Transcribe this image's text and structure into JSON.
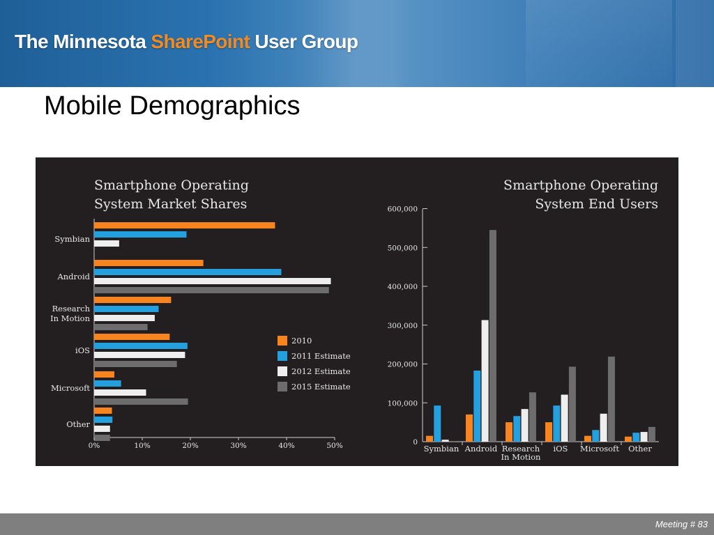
{
  "header": {
    "title_part1": "The Minnesota ",
    "title_accent": "SharePoint",
    "title_part2": " User Group"
  },
  "slide": {
    "title": "Mobile Demographics"
  },
  "footer": {
    "text": "Meeting # 83"
  },
  "colors": {
    "2010": "#f7841e",
    "2011 Estimate": "#24a0de",
    "2012 Estimate": "#eeeeee",
    "2015 Estimate": "#6d6d6d",
    "panel": "#231f20"
  },
  "chart_data": [
    {
      "type": "bar",
      "orientation": "horizontal",
      "title": [
        "Smartphone Operating",
        "System Market Shares"
      ],
      "categories": [
        [
          "Symbian"
        ],
        [
          "Android"
        ],
        [
          "Research",
          "In Motion"
        ],
        [
          "iOS"
        ],
        [
          "Microsoft"
        ],
        [
          "Other"
        ]
      ],
      "series": [
        {
          "name": "2010",
          "values": [
            37.6,
            22.7,
            16.0,
            15.7,
            4.2,
            3.7
          ]
        },
        {
          "name": "2011 Estimate",
          "values": [
            19.2,
            38.9,
            13.4,
            19.4,
            5.6,
            3.8
          ]
        },
        {
          "name": "2012 Estimate",
          "values": [
            5.2,
            49.2,
            12.6,
            18.9,
            10.8,
            3.3
          ]
        },
        {
          "name": "2015 Estimate",
          "values": [
            0.1,
            48.8,
            11.1,
            17.2,
            19.5,
            3.3
          ]
        }
      ],
      "xlim": [
        0,
        50
      ],
      "xticks": [
        "0%",
        "10%",
        "20%",
        "30%",
        "40%",
        "50%"
      ],
      "legend_position": "right"
    },
    {
      "type": "bar",
      "orientation": "vertical",
      "title": [
        "Smartphone Operating",
        "System End Users"
      ],
      "categories": [
        [
          "Symbian"
        ],
        [
          "Android"
        ],
        [
          "Research",
          "In Motion"
        ],
        [
          "iOS"
        ],
        [
          "Microsoft"
        ],
        [
          "Other"
        ]
      ],
      "series": [
        {
          "name": "2010",
          "values": [
            15000,
            70000,
            50000,
            50000,
            15000,
            13000
          ]
        },
        {
          "name": "2011 Estimate",
          "values": [
            93000,
            183000,
            66000,
            93000,
            30000,
            23000
          ]
        },
        {
          "name": "2012 Estimate",
          "values": [
            5000,
            313000,
            84000,
            121000,
            72000,
            25000
          ]
        },
        {
          "name": "2015 Estimate",
          "values": [
            1000,
            545000,
            127000,
            193000,
            219000,
            38000
          ]
        }
      ],
      "ylim": [
        0,
        600000
      ],
      "yticks": [
        "0",
        "100,000",
        "200,000",
        "300,000",
        "400,000",
        "500,000",
        "600,000"
      ]
    }
  ]
}
